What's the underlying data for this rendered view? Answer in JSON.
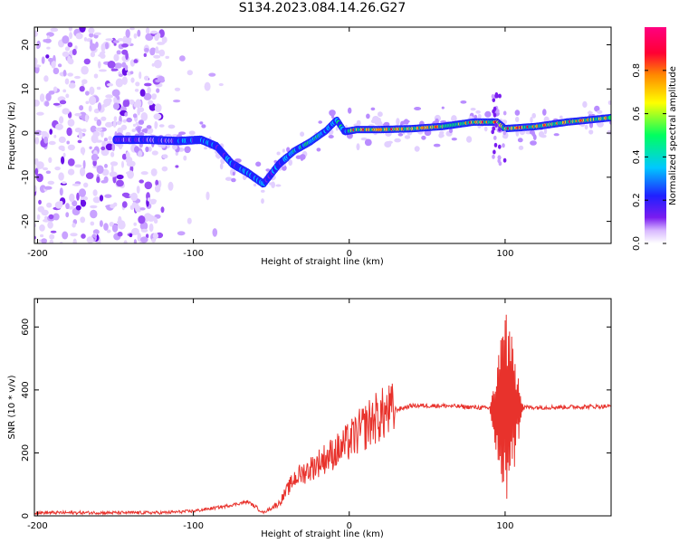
{
  "title": "S134.2023.084.14.26.G27",
  "colors": {
    "snr_line": "#e8322c",
    "scatter_low": "#7a1cf0",
    "background": "#ffffff"
  },
  "chart_data": [
    {
      "type": "heatmap",
      "title": "S134.2023.084.14.26.G27",
      "xlabel": "Height of straight line (km)",
      "ylabel": "Frequency (Hz)",
      "xlim": [
        -202,
        168
      ],
      "ylim": [
        -25,
        24
      ],
      "x_ticks": [
        -200,
        -100,
        0,
        100
      ],
      "y_ticks": [
        -20,
        -10,
        0,
        10,
        20
      ],
      "colorbar": {
        "label": "Normalized spectral amplitude",
        "ticks": [
          "0.0",
          "0.2",
          "0.4",
          "0.6",
          "0.8"
        ],
        "range": [
          0,
          1
        ],
        "colormap": [
          "#ffffff",
          "#d8b8ff",
          "#7a1cf0",
          "#2020ff",
          "#00c8ff",
          "#00ff60",
          "#ffff00",
          "#ff8800",
          "#ff0033",
          "#ff0080"
        ]
      },
      "ridge": {
        "x": [
          -150,
          -130,
          -110,
          -95,
          -85,
          -75,
          -65,
          -55,
          -45,
          -35,
          -25,
          -15,
          -8,
          -3,
          5,
          20,
          40,
          60,
          80,
          95,
          100,
          120,
          140,
          160,
          168
        ],
        "freq": [
          -1.5,
          -1.5,
          -1.8,
          -1.5,
          -3,
          -7,
          -9,
          -11.5,
          -7,
          -4,
          -2,
          0.5,
          3,
          0.3,
          0.8,
          0.8,
          1,
          1.5,
          2.5,
          2.5,
          1,
          1.5,
          2.5,
          3.2,
          3.5
        ]
      },
      "noise_region_x": [
        -202,
        -120
      ]
    },
    {
      "type": "line",
      "xlabel": "Height of straight line (km)",
      "ylabel": "SNR (10 * v/v)",
      "xlim": [
        -202,
        168
      ],
      "ylim": [
        0,
        690
      ],
      "x_ticks": [
        -200,
        -100,
        0,
        100
      ],
      "y_ticks": [
        0,
        200,
        400,
        600
      ],
      "trend": {
        "x": [
          -202,
          -120,
          -100,
          -80,
          -65,
          -55,
          -45,
          -35,
          -25,
          -15,
          -5,
          5,
          15,
          25,
          40,
          60,
          80,
          95,
          110,
          130,
          168
        ],
        "y": [
          10,
          10,
          15,
          30,
          45,
          10,
          40,
          120,
          150,
          185,
          215,
          260,
          305,
          330,
          350,
          350,
          345,
          340,
          345,
          345,
          348
        ]
      },
      "spike_region_x": [
        90,
        112
      ]
    }
  ]
}
